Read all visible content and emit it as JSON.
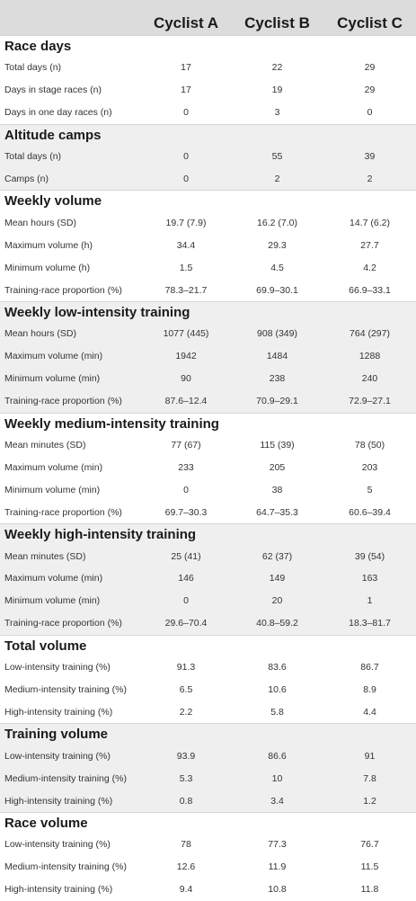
{
  "header": {
    "cyclists": [
      "Cyclist A",
      "Cyclist B",
      "Cyclist C"
    ]
  },
  "sections": [
    {
      "title": "Race days",
      "rows": [
        {
          "label": "Total days (n)",
          "values": [
            "17",
            "22",
            "29"
          ]
        },
        {
          "label": "Days in stage races (n)",
          "values": [
            "17",
            "19",
            "29"
          ]
        },
        {
          "label": "Days in one day races (n)",
          "values": [
            "0",
            "3",
            "0"
          ]
        }
      ]
    },
    {
      "title": "Altitude camps",
      "rows": [
        {
          "label": "Total days (n)",
          "values": [
            "0",
            "55",
            "39"
          ]
        },
        {
          "label": "Camps (n)",
          "values": [
            "0",
            "2",
            "2"
          ]
        }
      ]
    },
    {
      "title": "Weekly volume",
      "rows": [
        {
          "label": "Mean hours (SD)",
          "values": [
            "19.7 (7.9)",
            "16.2 (7.0)",
            "14.7 (6.2)"
          ]
        },
        {
          "label": "Maximum volume (h)",
          "values": [
            "34.4",
            "29.3",
            "27.7"
          ]
        },
        {
          "label": "Minimum volume (h)",
          "values": [
            "1.5",
            "4.5",
            "4.2"
          ]
        },
        {
          "label": "Training-race proportion (%)",
          "values": [
            "78.3–21.7",
            "69.9–30.1",
            "66.9–33.1"
          ]
        }
      ]
    },
    {
      "title": "Weekly low-intensity training",
      "rows": [
        {
          "label": "Mean hours (SD)",
          "values": [
            "1077 (445)",
            "908 (349)",
            "764 (297)"
          ]
        },
        {
          "label": "Maximum volume (min)",
          "values": [
            "1942",
            "1484",
            "1288"
          ]
        },
        {
          "label": "Minimum volume (min)",
          "values": [
            "90",
            "238",
            "240"
          ]
        },
        {
          "label": "Training-race proportion (%)",
          "values": [
            "87.6–12.4",
            "70.9–29.1",
            "72.9–27.1"
          ]
        }
      ]
    },
    {
      "title": "Weekly medium-intensity training",
      "rows": [
        {
          "label": "Mean minutes (SD)",
          "values": [
            "77 (67)",
            "115 (39)",
            "78 (50)"
          ]
        },
        {
          "label": "Maximum volume (min)",
          "values": [
            "233",
            "205",
            "203"
          ]
        },
        {
          "label": "Minimum volume (min)",
          "values": [
            "0",
            "38",
            "5"
          ]
        },
        {
          "label": "Training-race proportion (%)",
          "values": [
            "69.7–30.3",
            "64.7–35.3",
            "60.6–39.4"
          ]
        }
      ]
    },
    {
      "title": "Weekly high-intensity training",
      "rows": [
        {
          "label": "Mean minutes (SD)",
          "values": [
            "25 (41)",
            "62 (37)",
            "39 (54)"
          ]
        },
        {
          "label": "Maximum volume (min)",
          "values": [
            "146",
            "149",
            "163"
          ]
        },
        {
          "label": "Minimum volume (min)",
          "values": [
            "0",
            "20",
            "1"
          ]
        },
        {
          "label": "Training-race proportion (%)",
          "values": [
            "29.6–70.4",
            "40.8–59.2",
            "18.3–81.7"
          ]
        }
      ]
    },
    {
      "title": "Total volume",
      "rows": [
        {
          "label": "Low-intensity training (%)",
          "values": [
            "91.3",
            "83.6",
            "86.7"
          ]
        },
        {
          "label": "Medium-intensity training (%)",
          "values": [
            "6.5",
            "10.6",
            "8.9"
          ]
        },
        {
          "label": "High-intensity training (%)",
          "values": [
            "2.2",
            "5.8",
            "4.4"
          ]
        }
      ]
    },
    {
      "title": "Training volume",
      "rows": [
        {
          "label": "Low-intensity training (%)",
          "values": [
            "93.9",
            "86.6",
            "91"
          ]
        },
        {
          "label": "Medium-intensity training (%)",
          "values": [
            "5.3",
            "10",
            "7.8"
          ]
        },
        {
          "label": "High-intensity training (%)",
          "values": [
            "0.8",
            "3.4",
            "1.2"
          ]
        }
      ]
    },
    {
      "title": "Race volume",
      "rows": [
        {
          "label": "Low-intensity training (%)",
          "values": [
            "78",
            "77.3",
            "76.7"
          ]
        },
        {
          "label": "Medium-intensity training (%)",
          "values": [
            "12.6",
            "11.9",
            "11.5"
          ]
        },
        {
          "label": "High-intensity training (%)",
          "values": [
            "9.4",
            "10.8",
            "11.8"
          ]
        }
      ]
    }
  ]
}
